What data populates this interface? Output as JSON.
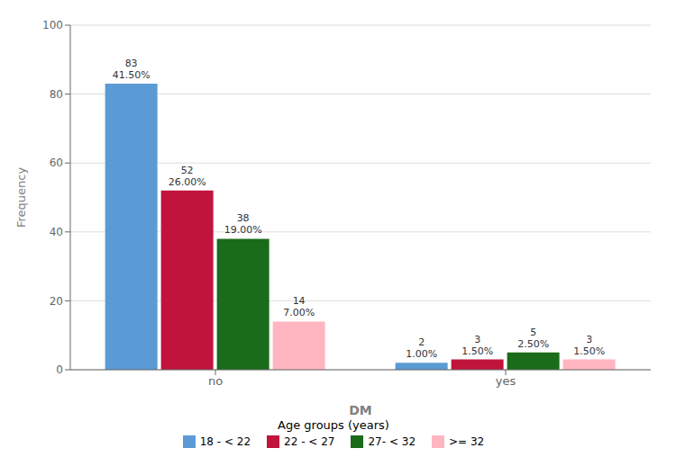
{
  "chart_data": {
    "type": "bar",
    "categories": [
      "no",
      "yes"
    ],
    "series": [
      {
        "name": "18 - < 22",
        "color": "#5B9BD5",
        "values": [
          83,
          2
        ],
        "value_labels": [
          "83\n41.50%",
          "2\n1.00%"
        ]
      },
      {
        "name": "22 - < 27",
        "color": "#C0143C",
        "values": [
          52,
          3
        ],
        "value_labels": [
          "52\n26.00%",
          "3\n1.50%"
        ]
      },
      {
        "name": "27- < 32",
        "color": "#1A6B1A",
        "values": [
          38,
          5
        ],
        "value_labels": [
          "38\n19.00%",
          "5\n2.50%"
        ]
      },
      {
        "name": ">= 32",
        "color": "#FFB6C1",
        "values": [
          14,
          3
        ],
        "value_labels": [
          "14\n7.00%",
          "3\n1.50%"
        ]
      }
    ],
    "xlabel": "DM",
    "ylabel": "Frequency",
    "legend_title": "Age groups (years)",
    "ylim": [
      0,
      100
    ],
    "yticks": [
      0,
      20,
      40,
      60,
      80,
      100
    ],
    "grid": true,
    "legend": "bottom",
    "data_labels": true
  }
}
